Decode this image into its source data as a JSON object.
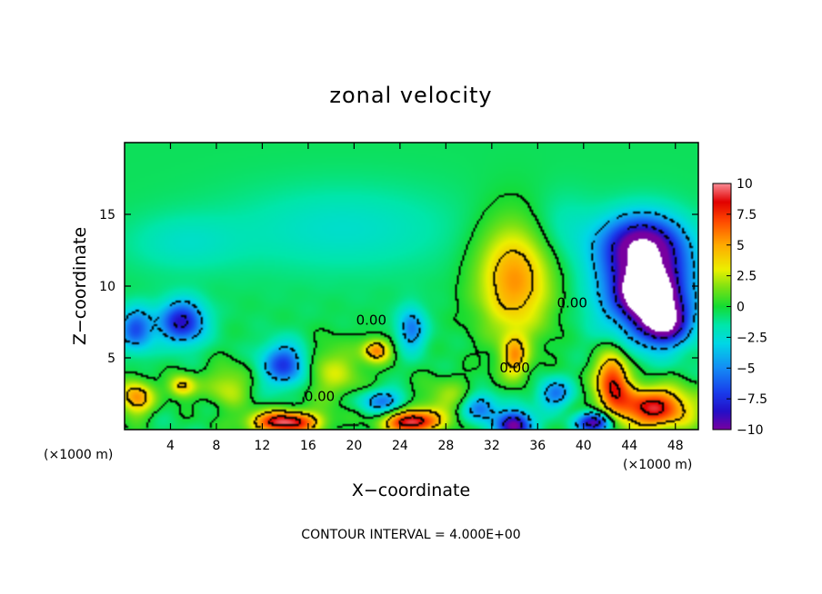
{
  "chart_data": {
    "type": "heatmap",
    "title": "zonal velocity",
    "xlabel": "X−coordinate",
    "ylabel": "Z−coordinate",
    "x_unit_left": "(×1000 m)",
    "x_unit_right": "(×1000 m)",
    "xlim": [
      0,
      50
    ],
    "ylim": [
      0,
      20
    ],
    "x_ticks": [
      4,
      8,
      12,
      16,
      20,
      24,
      28,
      32,
      36,
      40,
      44,
      48
    ],
    "y_ticks": [
      5,
      10,
      15
    ],
    "colorbar": {
      "range": [
        -10,
        10
      ],
      "ticks": [
        10,
        7.5,
        5,
        2.5,
        0,
        -2.5,
        -5,
        -7.5,
        -10
      ],
      "tick_labels": [
        "10",
        "7.5",
        "5",
        "2.5",
        "0",
        "−2.5",
        "−5",
        "−7.5",
        "−10"
      ]
    },
    "contour_labels": [
      {
        "text": "0.00",
        "x": 17,
        "z": 2
      },
      {
        "text": "0.00",
        "x": 21.5,
        "z": 7.3
      },
      {
        "text": "0.00",
        "x": 34,
        "z": 4
      },
      {
        "text": "0.00",
        "x": 39,
        "z": 8.5
      }
    ],
    "contour_interval_text": "CONTOUR INTERVAL = 4.000E+00",
    "features": [
      {
        "x": 34,
        "z": 10.5,
        "value": 6,
        "rx": 3.3,
        "rz": 4
      },
      {
        "x": 34,
        "z": 5,
        "value": 5,
        "rx": 1.2,
        "rz": 1.5
      },
      {
        "x": 45.5,
        "z": 10,
        "value": -10,
        "rx": 4,
        "rz": 3.5
      },
      {
        "x": 45.5,
        "z": 9.6,
        "value": -12,
        "rx": 1.8,
        "rz": 1.3
      },
      {
        "x": 47,
        "z": 7.5,
        "value": -9,
        "rx": 2,
        "rz": 1.5
      },
      {
        "x": 45,
        "z": 13,
        "value": -7,
        "rx": 3.5,
        "rz": 2
      },
      {
        "x": 5,
        "z": 7.5,
        "value": -8,
        "rx": 2,
        "rz": 1.5
      },
      {
        "x": 1,
        "z": 7,
        "value": -6,
        "rx": 1.5,
        "rz": 1.5
      },
      {
        "x": 14,
        "z": 4.5,
        "value": -7,
        "rx": 2,
        "rz": 1.5
      },
      {
        "x": 14,
        "z": 0.5,
        "value": 10,
        "rx": 3,
        "rz": 0.8
      },
      {
        "x": 25,
        "z": 0.5,
        "value": 10,
        "rx": 2.3,
        "rz": 0.8
      },
      {
        "x": 34,
        "z": 0.3,
        "value": -10,
        "rx": 1.5,
        "rz": 1
      },
      {
        "x": 41,
        "z": 0.5,
        "value": -10,
        "rx": 1.5,
        "rz": 0.7
      },
      {
        "x": 46,
        "z": 1.5,
        "value": 9,
        "rx": 3.5,
        "rz": 1.5
      },
      {
        "x": 42.5,
        "z": 3.5,
        "value": 8,
        "rx": 1.5,
        "rz": 2
      },
      {
        "x": 1,
        "z": 2.2,
        "value": 6,
        "rx": 1.5,
        "rz": 1.2
      },
      {
        "x": 22,
        "z": 5.5,
        "value": 6,
        "rx": 1.2,
        "rz": 0.8
      },
      {
        "x": 5,
        "z": 3,
        "value": 5,
        "rx": 1.2,
        "rz": 0.8
      },
      {
        "x": 18,
        "z": 4,
        "value": 3,
        "rx": 3,
        "rz": 2
      },
      {
        "x": 9,
        "z": 3,
        "value": 3,
        "rx": 2,
        "rz": 1.5
      },
      {
        "x": 28,
        "z": 2,
        "value": 2.5,
        "rx": 3,
        "rz": 1.5
      },
      {
        "x": 22.5,
        "z": 2,
        "value": -5,
        "rx": 2,
        "rz": 0.8
      },
      {
        "x": 31,
        "z": 1.5,
        "value": -6,
        "rx": 1.5,
        "rz": 1
      },
      {
        "x": 37.5,
        "z": 2.5,
        "value": -5,
        "rx": 1.5,
        "rz": 1
      },
      {
        "x": 25,
        "z": 7,
        "value": -5,
        "rx": 1.2,
        "rz": 1.5
      },
      {
        "x": 19,
        "z": 14,
        "value": -1.8,
        "rx": 10,
        "rz": 3
      },
      {
        "x": 38,
        "z": 14,
        "value": -1.5,
        "rx": 3,
        "rz": 2.5
      },
      {
        "x": 5,
        "z": 13,
        "value": -1.5,
        "rx": 5,
        "rz": 2
      }
    ],
    "base_value": -0.5
  }
}
